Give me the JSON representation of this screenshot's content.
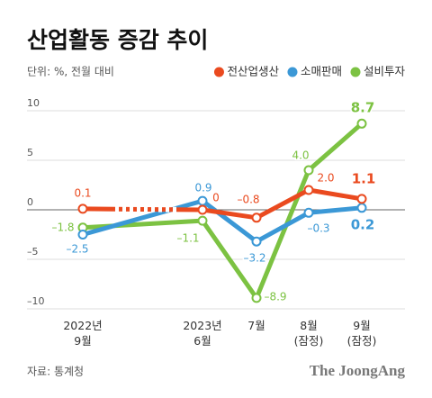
{
  "chart_data": {
    "type": "line",
    "title": "산업활동 증감 추이",
    "subtitle": "단위: %, 전월 대비",
    "categories": [
      "2022년 9월",
      "2023년 6월",
      "7월",
      "8월 (잠정)",
      "9월 (잠정)"
    ],
    "series": [
      {
        "name": "전산업생산",
        "color": "#ea4a1f",
        "values": [
          0.1,
          0,
          -0.8,
          2.0,
          1.1
        ],
        "value_labels": [
          "0.1",
          "0",
          "–0.8",
          "2.0",
          "1.1"
        ]
      },
      {
        "name": "소매판매",
        "color": "#3b98d6",
        "values": [
          -2.5,
          0.9,
          -3.2,
          -0.3,
          0.2
        ],
        "value_labels": [
          "–2.5",
          "0.9",
          "–3.2",
          "–0.3",
          "0.2"
        ]
      },
      {
        "name": "설비투자",
        "color": "#7cc242",
        "values": [
          -1.8,
          -1.1,
          -8.9,
          4.0,
          8.7
        ],
        "value_labels": [
          "–1.8",
          "–1.1",
          "–8.9",
          "4.0",
          "8.7"
        ]
      }
    ],
    "ylim": [
      -10,
      10
    ],
    "yticks": [
      10,
      5,
      0,
      {
        "value": -5,
        "label": "–5"
      },
      {
        "value": -10,
        "label": "–10"
      }
    ],
    "grid": true,
    "legend": "top-right",
    "source": "자료: 통계청",
    "brand": "The JoongAng"
  }
}
